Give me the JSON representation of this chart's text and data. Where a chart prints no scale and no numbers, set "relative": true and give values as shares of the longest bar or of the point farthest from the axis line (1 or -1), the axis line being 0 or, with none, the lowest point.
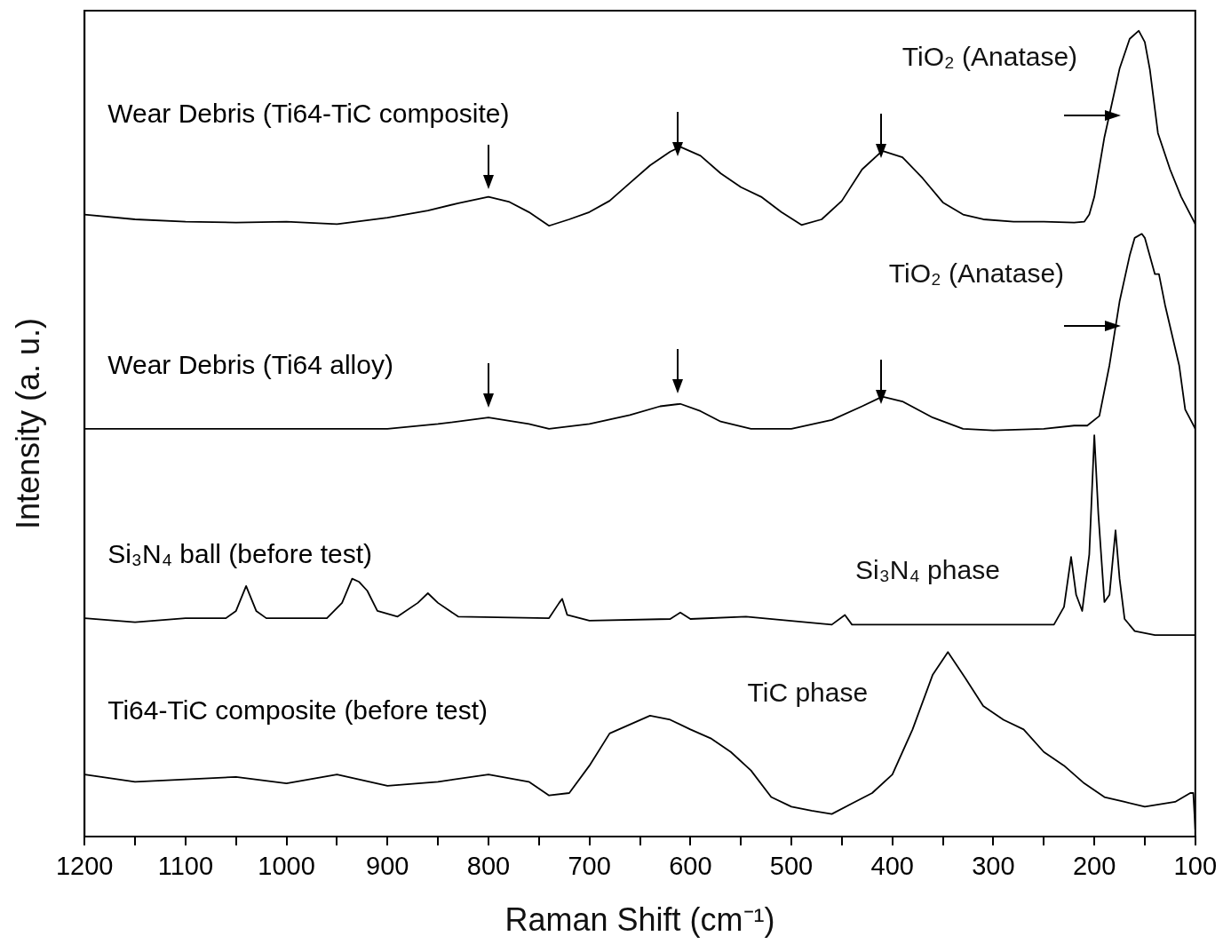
{
  "chart_data": {
    "type": "line",
    "relative": true,
    "xlabel": "Raman Shift (cm⁻¹)",
    "ylabel": "Intensity (a. u.)",
    "xlim": [
      1200,
      100
    ],
    "xticks": [
      1200,
      {
        "value": 1150,
        "label": null
      },
      1100,
      {
        "value": 1050,
        "label": null
      },
      1000,
      {
        "value": 950,
        "label": null
      },
      900,
      {
        "value": 850,
        "label": null
      },
      800,
      {
        "value": 750,
        "label": null
      },
      700,
      {
        "value": 650,
        "label": null
      },
      600,
      {
        "value": 550,
        "label": null
      },
      500,
      {
        "value": 450,
        "label": null
      },
      400,
      {
        "value": 350,
        "label": null
      },
      300,
      {
        "value": 250,
        "label": null
      },
      200,
      {
        "value": 150,
        "label": null
      },
      100
    ],
    "grid": false,
    "legend": false,
    "marker": "none",
    "line_style": "solid",
    "series": [
      {
        "name": "Wear Debris (Ti64-TiC composite)",
        "color": "#000000",
        "x": [
          1200,
          1150,
          1100,
          1050,
          1000,
          950,
          900,
          860,
          830,
          800,
          780,
          760,
          740,
          720,
          700,
          680,
          660,
          640,
          620,
          610,
          590,
          570,
          550,
          530,
          510,
          490,
          470,
          450,
          430,
          410,
          390,
          370,
          350,
          330,
          310,
          280,
          250,
          220,
          210,
          205,
          200,
          190,
          185,
          175,
          165,
          156,
          150,
          145,
          137,
          125,
          114,
          100
        ],
        "values": [
          0.772,
          0.766,
          0.763,
          0.762,
          0.763,
          0.76,
          0.768,
          0.777,
          0.786,
          0.794,
          0.788,
          0.775,
          0.758,
          0.766,
          0.775,
          0.789,
          0.811,
          0.833,
          0.85,
          0.856,
          0.845,
          0.823,
          0.806,
          0.794,
          0.775,
          0.759,
          0.766,
          0.789,
          0.828,
          0.851,
          0.843,
          0.817,
          0.787,
          0.772,
          0.766,
          0.763,
          0.763,
          0.762,
          0.763,
          0.772,
          0.794,
          0.868,
          0.896,
          0.953,
          0.99,
          1.0,
          0.986,
          0.952,
          0.873,
          0.828,
          0.794,
          0.76
        ]
      },
      {
        "name": "Wear Debris (Ti64 alloy)",
        "color": "#000000",
        "x": [
          1200,
          1100,
          1000,
          900,
          850,
          800,
          760,
          740,
          700,
          660,
          630,
          610,
          590,
          570,
          540,
          500,
          460,
          430,
          410,
          390,
          360,
          330,
          300,
          250,
          220,
          207,
          195,
          185,
          175,
          165,
          160,
          153,
          150,
          140,
          136,
          130,
          116,
          110,
          100
        ],
        "values": [
          0.506,
          0.506,
          0.506,
          0.506,
          0.512,
          0.52,
          0.512,
          0.506,
          0.512,
          0.523,
          0.534,
          0.537,
          0.528,
          0.515,
          0.506,
          0.506,
          0.517,
          0.534,
          0.546,
          0.54,
          0.52,
          0.506,
          0.504,
          0.506,
          0.51,
          0.51,
          0.522,
          0.585,
          0.664,
          0.721,
          0.743,
          0.748,
          0.743,
          0.698,
          0.698,
          0.66,
          0.585,
          0.53,
          0.506
        ]
      },
      {
        "name": "Si₃N₄ ball (before test)",
        "color": "#000000",
        "x": [
          1200,
          1150,
          1100,
          1060,
          1050,
          1040,
          1030,
          1020,
          960,
          945,
          935,
          928,
          920,
          910,
          890,
          870,
          860,
          850,
          830,
          740,
          730,
          727,
          722,
          700,
          620,
          610,
          600,
          545,
          460,
          447,
          440,
          240,
          230,
          223,
          218,
          212,
          205,
          200,
          196,
          190,
          185,
          179,
          175,
          170,
          160,
          140,
          100
        ],
        "values": [
          0.271,
          0.266,
          0.271,
          0.271,
          0.28,
          0.311,
          0.28,
          0.271,
          0.271,
          0.29,
          0.32,
          0.316,
          0.305,
          0.28,
          0.273,
          0.29,
          0.302,
          0.29,
          0.273,
          0.271,
          0.29,
          0.295,
          0.275,
          0.268,
          0.27,
          0.278,
          0.27,
          0.273,
          0.263,
          0.275,
          0.263,
          0.263,
          0.285,
          0.347,
          0.3,
          0.28,
          0.35,
          0.498,
          0.4,
          0.291,
          0.3,
          0.38,
          0.32,
          0.27,
          0.255,
          0.25,
          0.25
        ]
      },
      {
        "name": "Ti64-TiC composite (before test)",
        "color": "#000000",
        "x": [
          1200,
          1150,
          1100,
          1050,
          1000,
          950,
          900,
          850,
          800,
          760,
          740,
          720,
          700,
          680,
          660,
          640,
          620,
          600,
          580,
          560,
          540,
          520,
          500,
          480,
          460,
          440,
          420,
          400,
          380,
          360,
          345,
          330,
          310,
          290,
          270,
          250,
          230,
          210,
          190,
          170,
          150,
          120,
          105,
          102,
          100
        ],
        "values": [
          0.077,
          0.068,
          0.071,
          0.074,
          0.066,
          0.077,
          0.063,
          0.068,
          0.077,
          0.068,
          0.051,
          0.054,
          0.088,
          0.128,
          0.139,
          0.15,
          0.145,
          0.133,
          0.122,
          0.105,
          0.082,
          0.049,
          0.037,
          0.032,
          0.028,
          0.041,
          0.054,
          0.077,
          0.133,
          0.201,
          0.229,
          0.201,
          0.162,
          0.145,
          0.133,
          0.105,
          0.088,
          0.066,
          0.049,
          0.043,
          0.037,
          0.043,
          0.054,
          0.054,
          0.009
        ]
      }
    ],
    "annotations": [
      "TiO₂ (Anatase)",
      "TiO₂ (Anatase)",
      "Si₃N₄ phase",
      "TiC phase"
    ]
  }
}
